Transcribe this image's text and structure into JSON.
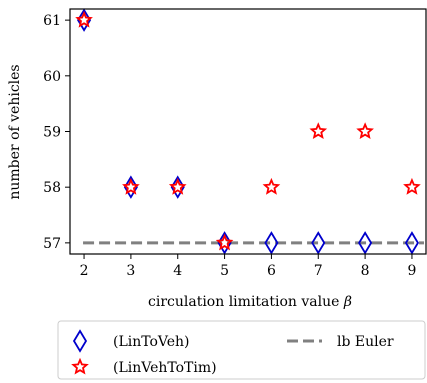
{
  "chart_data": {
    "type": "scatter",
    "xlabel": "circulation limitation value",
    "xlabel_symbol": "β",
    "ylabel": "number of vehicles",
    "x_ticks": [
      "2",
      "3",
      "4",
      "5",
      "6",
      "7",
      "8",
      "9"
    ],
    "y_ticks": [
      "57",
      "58",
      "59",
      "60",
      "61"
    ],
    "xlim": [
      1.7,
      9.3
    ],
    "ylim": [
      56.8,
      61.2
    ],
    "grid": false,
    "legend_position": "below",
    "series": [
      {
        "name": "(LinToVeh)",
        "marker": "diamond",
        "color": "#0000cc",
        "x": [
          2,
          3,
          4,
          5,
          6,
          7,
          8,
          9
        ],
        "y": [
          61,
          58,
          58,
          57,
          57,
          57,
          57,
          57
        ]
      },
      {
        "name": "(LinVehToTim)",
        "marker": "star",
        "color": "#ff0000",
        "x": [
          2,
          3,
          4,
          5,
          6,
          7,
          8,
          9
        ],
        "y": [
          61,
          58,
          58,
          57,
          58,
          59,
          59,
          58
        ]
      }
    ],
    "reference_lines": [
      {
        "name": "lb Euler",
        "y": 57,
        "style": "dashed",
        "color": "#808080"
      }
    ]
  }
}
